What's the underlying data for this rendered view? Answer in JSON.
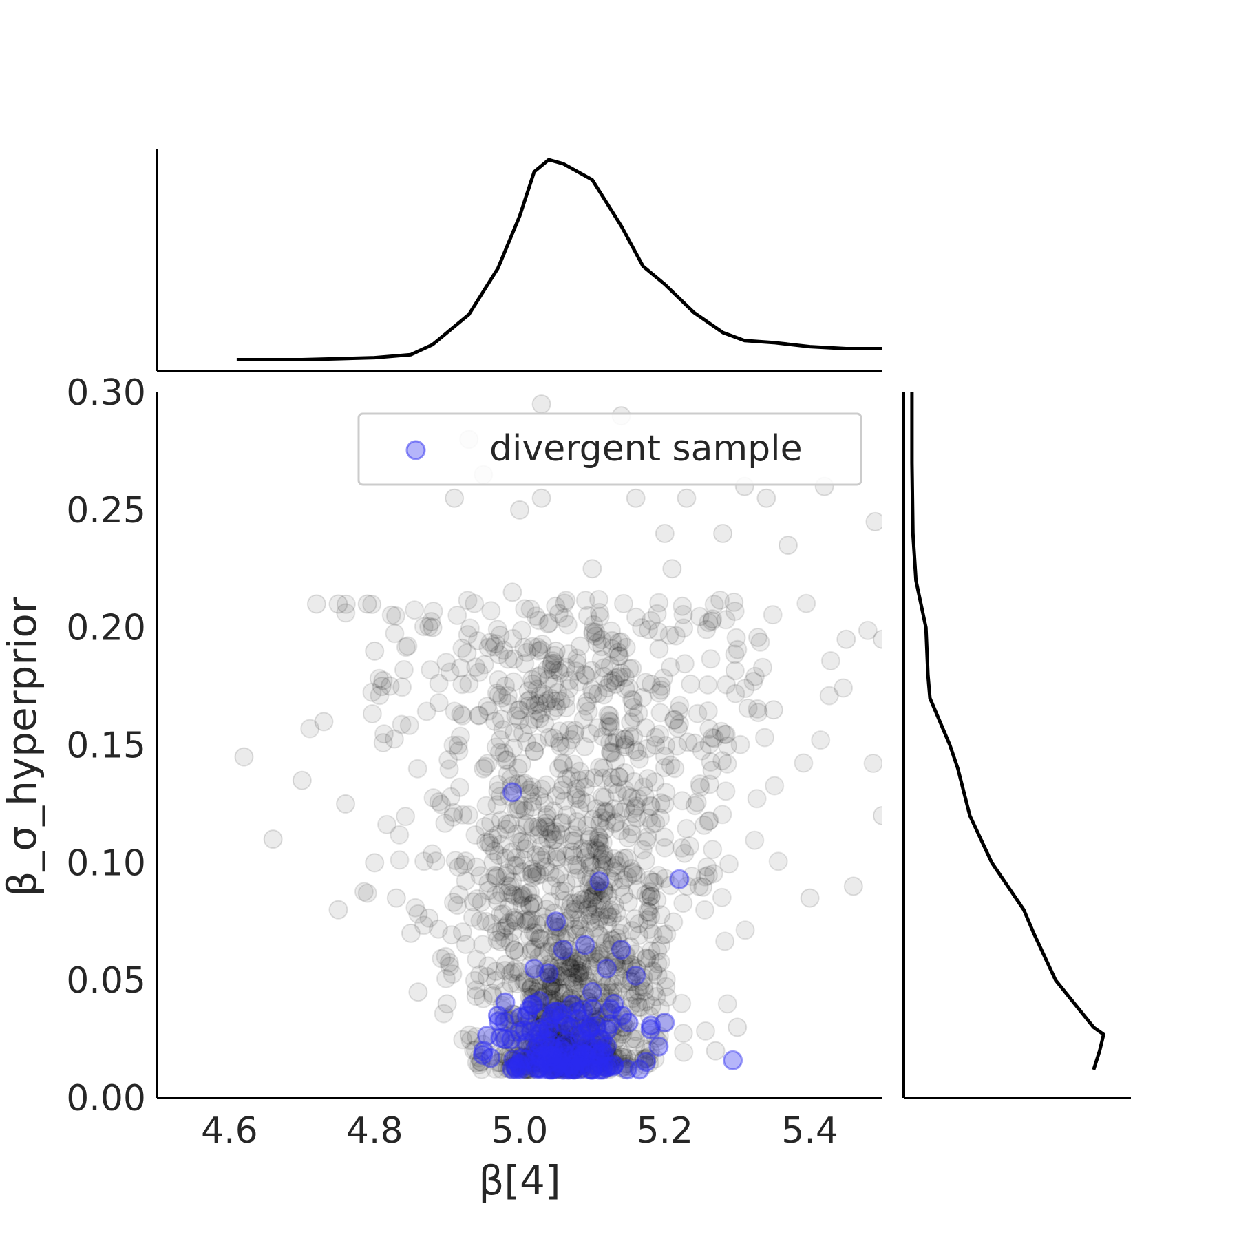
{
  "chart_data": {
    "type": "scatter",
    "xlabel": "β[4]",
    "ylabel": "β_σ_hyperprior",
    "xlim": [
      4.5,
      5.5
    ],
    "ylim": [
      0.0,
      0.3
    ],
    "xticks": [
      "4.6",
      "4.8",
      "5.0",
      "5.2",
      "5.4"
    ],
    "yticks": [
      "0.00",
      "0.05",
      "0.10",
      "0.15",
      "0.20",
      "0.25",
      "0.30"
    ],
    "grid": false,
    "legend": {
      "entries": [
        "divergent sample"
      ],
      "placement": "top-right"
    },
    "series": [
      {
        "role": "samples",
        "color": "#000000",
        "alpha": 0.08,
        "x": [
          4.62,
          4.66,
          4.7,
          4.72,
          4.73,
          4.75,
          4.76,
          4.79,
          4.8,
          4.81,
          4.83,
          4.86,
          4.88,
          4.91,
          4.93,
          4.95,
          4.99,
          5.0,
          5.03,
          5.03,
          5.05,
          5.1,
          5.14,
          5.16,
          5.2,
          5.21,
          5.23,
          5.28,
          5.31,
          5.34,
          5.37,
          5.42,
          5.46,
          5.49,
          5.5,
          5.45,
          5.5,
          5.4,
          5.35,
          5.3,
          4.9,
          4.85,
          4.8,
          4.75,
          5.27,
          5.18,
          5.09,
          5.0,
          4.95
        ],
        "y": [
          0.145,
          0.11,
          0.135,
          0.21,
          0.16,
          0.21,
          0.125,
          0.21,
          0.1,
          0.175,
          0.085,
          0.045,
          0.2,
          0.255,
          0.28,
          0.265,
          0.215,
          0.25,
          0.295,
          0.255,
          0.19,
          0.225,
          0.29,
          0.255,
          0.24,
          0.225,
          0.255,
          0.24,
          0.26,
          0.255,
          0.235,
          0.26,
          0.09,
          0.245,
          0.12,
          0.195,
          0.195,
          0.085,
          0.165,
          0.03,
          0.04,
          0.07,
          0.19,
          0.08,
          0.02,
          0.02,
          0.18,
          0.165,
          0.14
        ]
      },
      {
        "role": "divergent",
        "name": "divergent sample",
        "color": "#2b2bf0",
        "alpha": 0.35,
        "x": [
          4.99,
          5.11,
          5.22,
          5.05,
          5.06,
          5.09,
          5.14,
          5.02,
          5.04,
          5.12,
          5.16,
          5.1,
          5.13,
          4.97,
          5.01,
          5.07,
          5.15,
          5.2,
          4.95,
          4.98,
          5.0,
          5.03,
          5.06,
          5.08,
          5.11,
          5.12,
          4.96,
          5.04,
          5.09,
          5.13,
          5.05,
          5.07,
          5.1,
          5.02,
          5.06,
          5.11,
          5.0,
          5.08,
          5.12,
          5.04
        ],
        "y": [
          0.13,
          0.092,
          0.093,
          0.075,
          0.063,
          0.065,
          0.063,
          0.055,
          0.053,
          0.055,
          0.052,
          0.045,
          0.04,
          0.035,
          0.035,
          0.03,
          0.032,
          0.032,
          0.02,
          0.025,
          0.028,
          0.022,
          0.02,
          0.018,
          0.025,
          0.022,
          0.017,
          0.015,
          0.015,
          0.014,
          0.013,
          0.014,
          0.012,
          0.016,
          0.012,
          0.012,
          0.014,
          0.016,
          0.013,
          0.018
        ]
      }
    ],
    "marginal_x": {
      "x": [
        4.61,
        4.7,
        4.75,
        4.8,
        4.85,
        4.88,
        4.93,
        4.97,
        5.0,
        5.02,
        5.04,
        5.06,
        5.1,
        5.14,
        5.17,
        5.2,
        5.24,
        5.28,
        5.31,
        5.35,
        5.4,
        5.45,
        5.5
      ],
      "density": [
        0.005,
        0.005,
        0.01,
        0.015,
        0.03,
        0.08,
        0.23,
        0.46,
        0.72,
        0.94,
        1.0,
        0.98,
        0.9,
        0.67,
        0.47,
        0.38,
        0.24,
        0.14,
        0.1,
        0.09,
        0.07,
        0.06,
        0.06
      ]
    },
    "marginal_y": {
      "y": [
        0.3,
        0.27,
        0.24,
        0.22,
        0.2,
        0.18,
        0.17,
        0.15,
        0.14,
        0.12,
        0.1,
        0.09,
        0.08,
        0.07,
        0.05,
        0.03,
        0.027,
        0.02,
        0.012
      ],
      "density": [
        0.01,
        0.01,
        0.015,
        0.03,
        0.08,
        0.09,
        0.1,
        0.2,
        0.24,
        0.3,
        0.41,
        0.49,
        0.57,
        0.62,
        0.73,
        0.92,
        0.97,
        0.95,
        0.92
      ]
    }
  }
}
